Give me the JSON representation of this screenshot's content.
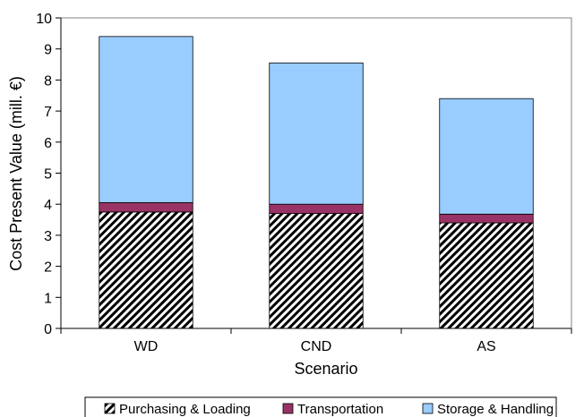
{
  "chart_data": {
    "type": "bar",
    "stacked": true,
    "categories": [
      "WD",
      "CND",
      "AS"
    ],
    "series": [
      {
        "name": "Purchasing & Loading",
        "values": [
          3.75,
          3.7,
          3.4
        ],
        "color": "#000000",
        "pattern": "diagonal-hatch"
      },
      {
        "name": "Transportation",
        "values": [
          0.3,
          0.3,
          0.28
        ],
        "color": "#993366"
      },
      {
        "name": "Storage & Handling",
        "values": [
          5.35,
          4.55,
          3.72
        ],
        "color": "#99CCFF"
      }
    ],
    "title": "",
    "xlabel": "Scenario",
    "ylabel": "Cost Present Value (mill. €)",
    "ylim": [
      0,
      10
    ],
    "yticks": [
      "0",
      "1",
      "2",
      "3",
      "4",
      "5",
      "6",
      "7",
      "8",
      "9",
      "10"
    ],
    "grid": false,
    "legend_position": "bottom"
  }
}
